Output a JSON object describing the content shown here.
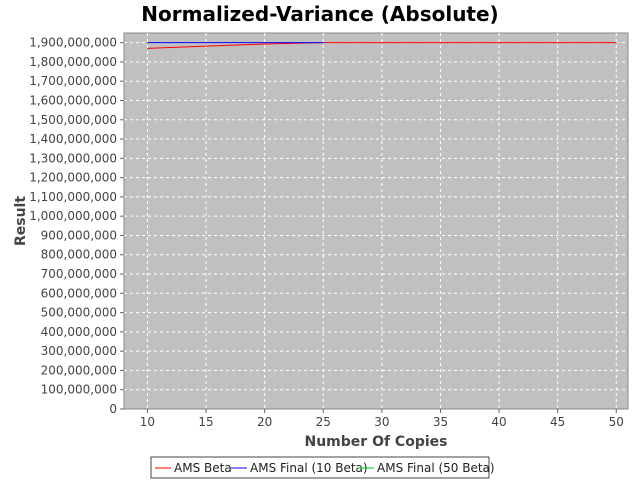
{
  "chart_data": {
    "type": "line",
    "title": "Normalized-Variance (Absolute)",
    "xlabel": "Number Of Copies",
    "ylabel": "Result",
    "xlim": [
      8,
      51
    ],
    "ylim": [
      0,
      1950000000
    ],
    "xticks": [
      10,
      15,
      20,
      25,
      30,
      35,
      40,
      45,
      50
    ],
    "yticks": [
      0,
      100000000,
      200000000,
      300000000,
      400000000,
      500000000,
      600000000,
      700000000,
      800000000,
      900000000,
      1000000000,
      1100000000,
      1200000000,
      1300000000,
      1400000000,
      1500000000,
      1600000000,
      1700000000,
      1800000000,
      1900000000
    ],
    "grid": true,
    "legend_position": "bottom",
    "series": [
      {
        "name": "AMS Beta",
        "color": "#ff0000",
        "x": [
          10,
          15,
          20,
          25,
          30,
          35,
          40,
          45,
          50
        ],
        "values": [
          1870000000,
          1882000000,
          1893000000,
          1900000000,
          1900000000,
          1900000000,
          1900000000,
          1900000000,
          1900000000
        ]
      },
      {
        "name": "AMS Final (10 Beta)",
        "color": "#0000ff",
        "x": [
          10,
          15,
          20,
          25
        ],
        "values": [
          1900000000,
          1900000000,
          1900000000,
          1900000000
        ]
      },
      {
        "name": "AMS Final (50 Beta)",
        "color": "#00cc00",
        "x": [],
        "values": []
      }
    ]
  }
}
